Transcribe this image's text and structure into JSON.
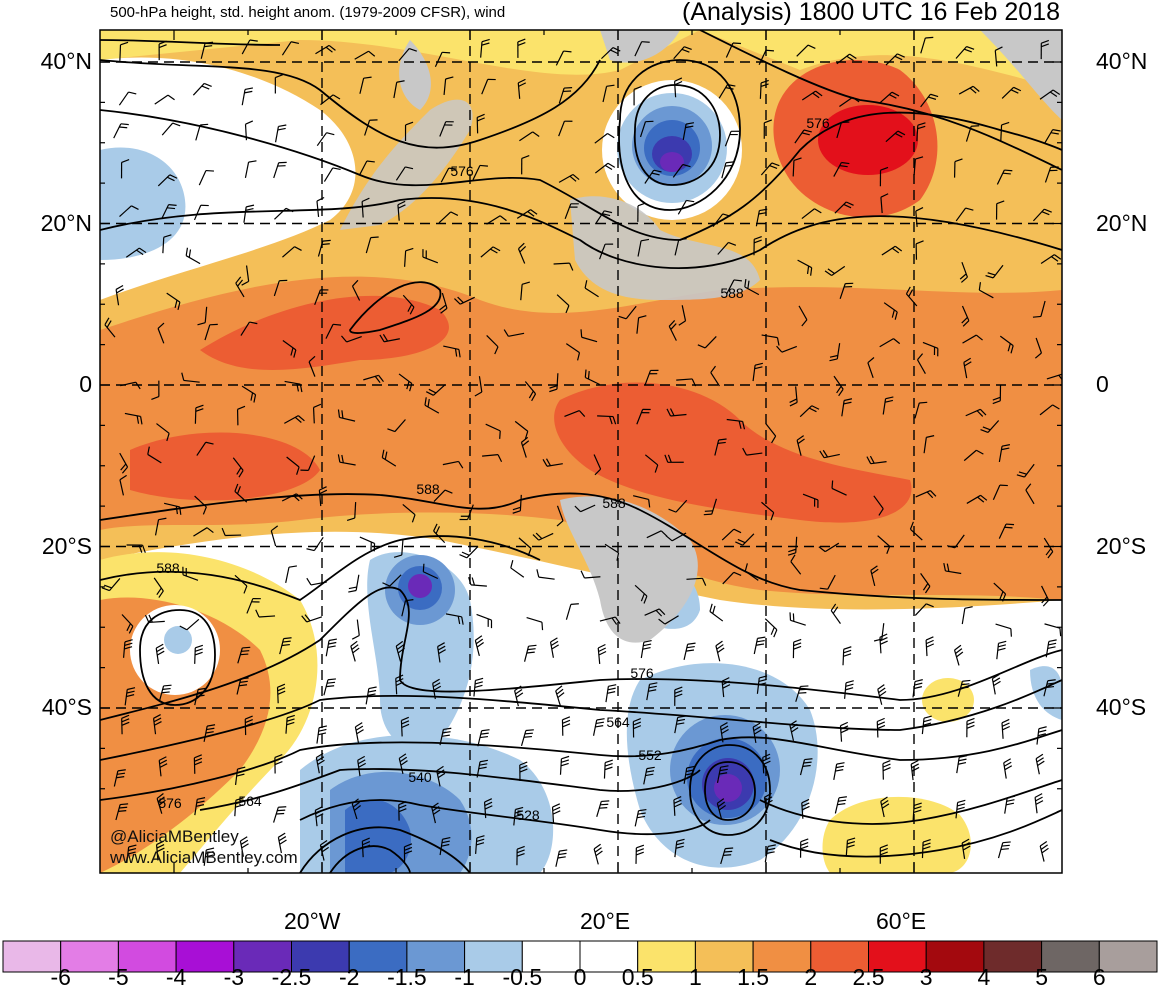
{
  "header": {
    "left_title": "500-hPa height, std. height anom. (1979-2009 CFSR), wind",
    "right_title": "(Analysis) 1800 UTC 16 Feb 2018"
  },
  "map": {
    "lat_labels": [
      {
        "text": "40°N",
        "lat": 40
      },
      {
        "text": "20°N",
        "lat": 20
      },
      {
        "text": "0",
        "lat": 0
      },
      {
        "text": "20°S",
        "lat": -20
      },
      {
        "text": "40°S",
        "lat": -40
      }
    ],
    "lon_labels": [
      {
        "text": "20°W",
        "lon": -20
      },
      {
        "text": "20°E",
        "lon": 20
      },
      {
        "text": "60°E",
        "lon": 60
      }
    ],
    "contour_labels": [
      "576",
      "576",
      "588",
      "588",
      "588",
      "588",
      "576",
      "564",
      "552",
      "540",
      "528",
      "564",
      "576"
    ],
    "colors": {
      "land": "#c8c8c8",
      "contour": "#000000",
      "grid": "#000000"
    }
  },
  "colorbar": {
    "labels": [
      "-6",
      "-5",
      "-4",
      "-3",
      "-2.5",
      "-2",
      "-1.5",
      "-1",
      "-0.5",
      "0",
      "0.5",
      "1",
      "1.5",
      "2",
      "2.5",
      "3",
      "4",
      "5",
      "6"
    ],
    "colors": [
      "#e9b8e8",
      "#e37de6",
      "#d24be0",
      "#a80fd6",
      "#6a2ab8",
      "#3c3aaf",
      "#3b6cc2",
      "#6b98d3",
      "#a9cbe8",
      "#ffffff",
      "#ffffff",
      "#fbe36b",
      "#f4bf58",
      "#f08f43",
      "#ec5d33",
      "#e3101b",
      "#a3090e",
      "#6e2b2b",
      "#6e6664",
      "#a89e9c"
    ]
  },
  "credits": {
    "twitter": "@AliciaMBentley",
    "website": "www.AliciaMBentley.com"
  }
}
